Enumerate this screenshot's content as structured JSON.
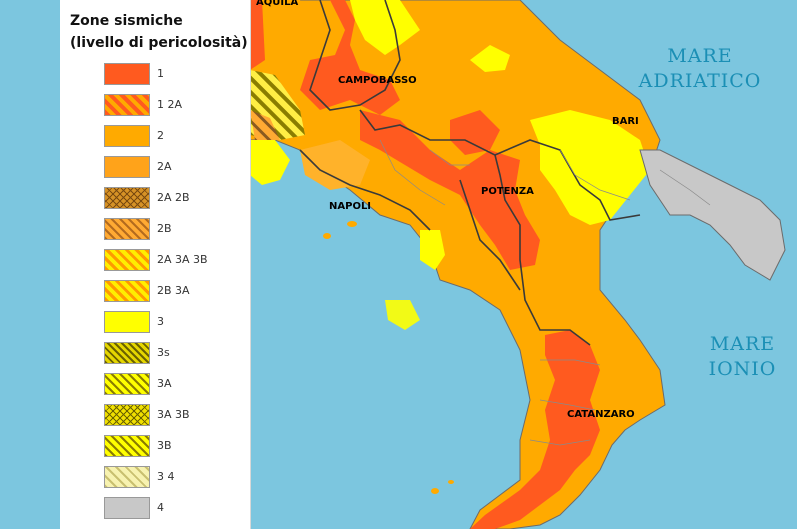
{
  "legend": {
    "title_line1": "Zone sismiche",
    "title_line2": "(livello di pericolosità)",
    "items": [
      {
        "label": "1",
        "color": "#ff5a1f",
        "pattern": "solid"
      },
      {
        "label": "1 2A",
        "color": "#ff6a1a",
        "pattern": "hatch-orange"
      },
      {
        "label": "2",
        "color": "#ffaa00",
        "pattern": "solid"
      },
      {
        "label": "2A",
        "color": "#ffa31a",
        "pattern": "solid"
      },
      {
        "label": "2A 2B",
        "color": "#d69226",
        "pattern": "cross"
      },
      {
        "label": "2B",
        "color": "#e89a2a",
        "pattern": "hatch-brown"
      },
      {
        "label": "2A 3A 3B",
        "color": "#ffe81a",
        "pattern": "hatch-yellow-orange"
      },
      {
        "label": "2B 3A",
        "color": "#ffc21a",
        "pattern": "hatch-yellow-orange"
      },
      {
        "label": "3",
        "color": "#ffff00",
        "pattern": "solid"
      },
      {
        "label": "3s",
        "color": "#c8b400",
        "pattern": "hatch-olive"
      },
      {
        "label": "3A",
        "color": "#ffee00",
        "pattern": "hatch-yellow-dark"
      },
      {
        "label": "3A 3B",
        "color": "#e6d200",
        "pattern": "cross-yellow"
      },
      {
        "label": "3B",
        "color": "#fff020",
        "pattern": "hatch-yellow-dark"
      },
      {
        "label": "3 4",
        "color": "#ede9a0",
        "pattern": "hatch-light"
      },
      {
        "label": "4",
        "color": "#c8c8c8",
        "pattern": "solid"
      }
    ]
  },
  "places": {
    "aquila": "AQUILA",
    "campobasso": "CAMPOBASSO",
    "bari": "BARI",
    "napoli": "NAPOLI",
    "potenza": "POTENZA",
    "catanzaro": "CATANZARO"
  },
  "seas": {
    "adriatico_line1": "MARE",
    "adriatico_line2": "ADRIATICO",
    "ionio_line1": "MARE",
    "ionio_line2": "IONIO"
  },
  "colors": {
    "sea": "#7cc6df",
    "zone1": "#ff5a1f",
    "zone2": "#ffaa00",
    "zone3": "#ffff00",
    "zone4": "#c8c8c8",
    "border": "#444444"
  }
}
